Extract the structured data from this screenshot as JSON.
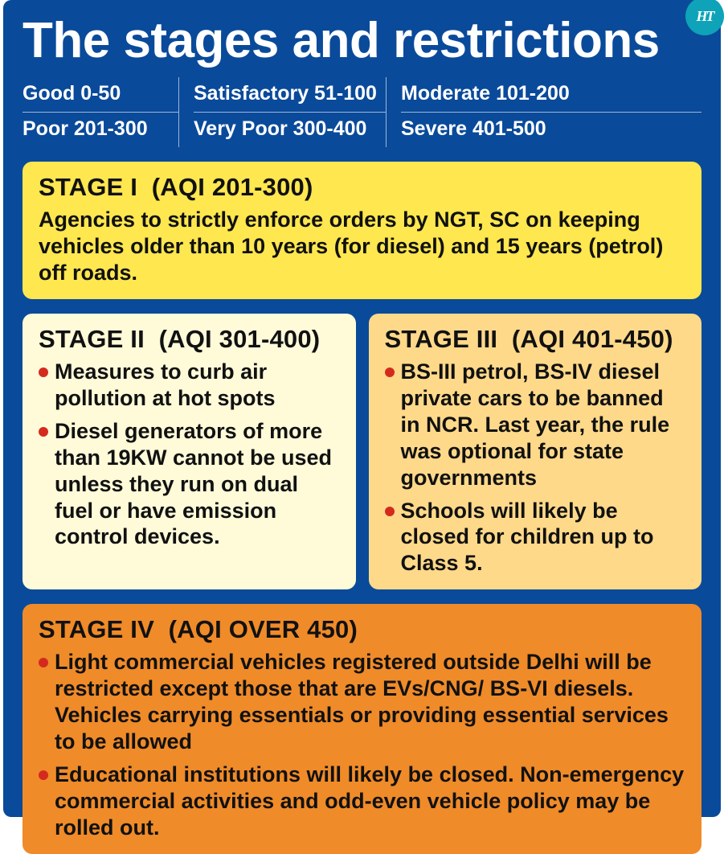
{
  "logo_text": "HT",
  "title": "The stages and restrictions",
  "aqi_scale": {
    "rows": [
      [
        "Good 0-50",
        "Satisfactory 51-100",
        "Moderate 101-200"
      ],
      [
        "Poor 201-300",
        "Very Poor 300-400",
        "Severe 401-500"
      ]
    ]
  },
  "colors": {
    "panel_bg": "#0a4a9a",
    "stage1_bg": "#ffe74f",
    "stage2_bg": "#fffbd9",
    "stage3_bg": "#ffd98a",
    "stage4_bg": "#f08b29",
    "bullet_color": "#d42a1e",
    "logo_bg": "#0ea3b8"
  },
  "stage1": {
    "head_label": "STAGE I",
    "head_range": "(AQI 201-300)",
    "body": "Agencies to strictly enforce orders by NGT, SC on keeping vehicles older than 10 years (for diesel) and 15 years (petrol) off roads."
  },
  "stage2": {
    "head_label": "STAGE II",
    "head_range": "(AQI 301-400)",
    "bullets": [
      "Measures to curb air pollution at hot spots",
      "Diesel generators of more than 19KW cannot be used unless they run on dual fuel or have emission control devices."
    ]
  },
  "stage3": {
    "head_label": "STAGE III",
    "head_range": "(AQI 401-450)",
    "bullets": [
      "BS-III petrol, BS-IV diesel private cars to be banned in NCR. Last year, the rule was optional for state governments",
      "Schools will likely be closed for children up to Class 5."
    ]
  },
  "stage4": {
    "head_label": "STAGE IV",
    "head_range": "(AQI OVER 450)",
    "bullets": [
      "Light commercial vehicles registered outside Delhi will be restricted except those that are EVs/CNG/ BS-VI diesels. Vehicles carrying essentials or providing essential services to be allowed",
      "Educational institutions will likely be closed. Non-emergency commercial activities and odd-even vehicle policy may be rolled out."
    ]
  }
}
